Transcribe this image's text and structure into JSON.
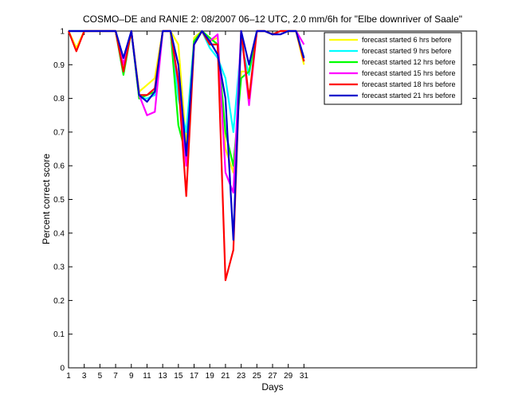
{
  "chart_data": {
    "type": "line",
    "title": "COSMO–DE and RANIE 2: 08/2007 06–12 UTC, 2.0 mm/6h for \"Elbe downriver of Saale\"",
    "xlabel": "Days",
    "ylabel": "Percent correct score",
    "xlim": [
      1,
      53
    ],
    "ylim": [
      0,
      1
    ],
    "xticks": [
      1,
      3,
      5,
      7,
      9,
      11,
      13,
      15,
      17,
      19,
      21,
      23,
      25,
      27,
      29,
      31
    ],
    "yticks": [
      0,
      0.1,
      0.2,
      0.3,
      0.4,
      0.5,
      0.6,
      0.7,
      0.8,
      0.9,
      1
    ],
    "ytick_labels": [
      "0",
      "0.1",
      "0.2",
      "0.3",
      "0.4",
      "0.5",
      "0.6",
      "0.7",
      "0.8",
      "0.9",
      "1"
    ],
    "grid": false,
    "legend_position": "top-right",
    "x": [
      1,
      2,
      3,
      4,
      5,
      6,
      7,
      8,
      9,
      10,
      11,
      12,
      13,
      14,
      15,
      16,
      17,
      18,
      19,
      20,
      21,
      22,
      23,
      24,
      25,
      26,
      27,
      28,
      29,
      30,
      31
    ],
    "series": [
      {
        "name": "forecast started 6 hrs before",
        "color": "#ffff00",
        "values": [
          1,
          0.95,
          1,
          1,
          1,
          1,
          1,
          0.88,
          1,
          0.82,
          0.84,
          0.86,
          1,
          1,
          0.96,
          0.66,
          0.98,
          1,
          0.97,
          0.98,
          0.65,
          0.58,
          0.88,
          0.88,
          1,
          1,
          0.99,
          1,
          1,
          1,
          0.9
        ]
      },
      {
        "name": "forecast started 9 hrs before",
        "color": "#00ffff",
        "values": [
          1,
          1,
          1,
          1,
          1,
          1,
          1,
          0.9,
          1,
          0.8,
          0.8,
          0.81,
          1,
          1,
          0.8,
          0.7,
          0.97,
          1,
          0.95,
          0.92,
          0.86,
          0.7,
          0.96,
          0.87,
          1,
          1,
          0.99,
          1,
          1,
          1,
          0.92
        ]
      },
      {
        "name": "forecast started 12 hrs before",
        "color": "#00ff00",
        "values": [
          1,
          1,
          1,
          1,
          1,
          1,
          1,
          0.87,
          1,
          0.8,
          0.81,
          0.82,
          1,
          1,
          0.72,
          0.63,
          0.97,
          1,
          0.98,
          0.96,
          0.7,
          0.6,
          0.86,
          0.88,
          1,
          1,
          0.99,
          1,
          1,
          1,
          0.91
        ]
      },
      {
        "name": "forecast started 15 hrs before",
        "color": "#ff00ff",
        "values": [
          1,
          1,
          1,
          1,
          1,
          1,
          1,
          0.9,
          1,
          0.81,
          0.75,
          0.76,
          1,
          1,
          0.84,
          0.6,
          0.96,
          1,
          0.97,
          0.99,
          0.58,
          0.52,
          1,
          0.78,
          1,
          1,
          0.99,
          1,
          1,
          1,
          0.96
        ]
      },
      {
        "name": "forecast started 18 hrs before",
        "color": "#ff0000",
        "values": [
          1,
          0.94,
          1,
          1,
          1,
          1,
          1,
          0.88,
          1,
          0.81,
          0.81,
          0.83,
          1,
          1,
          0.85,
          0.51,
          0.96,
          1,
          0.96,
          0.96,
          0.26,
          0.35,
          1,
          0.8,
          1,
          1,
          0.99,
          1,
          1,
          1,
          0.91
        ]
      },
      {
        "name": "forecast started 21 hrs before",
        "color": "#0000cc",
        "values": [
          1,
          1,
          1,
          1,
          1,
          1,
          1,
          0.92,
          1,
          0.81,
          0.79,
          0.82,
          1,
          1,
          0.9,
          0.63,
          0.96,
          1,
          0.97,
          0.93,
          0.8,
          0.38,
          1,
          0.9,
          1,
          1,
          0.99,
          0.99,
          1,
          1,
          0.92
        ]
      }
    ]
  }
}
